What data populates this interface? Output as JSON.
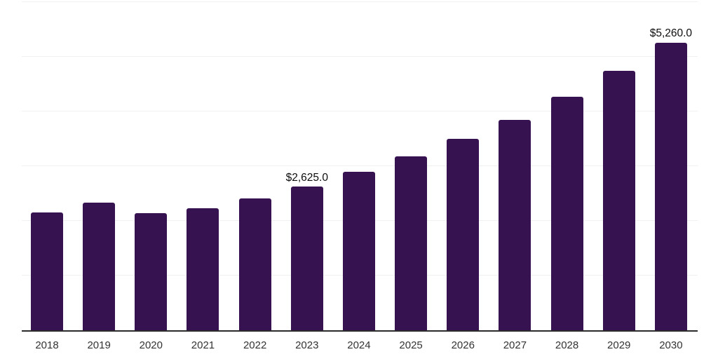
{
  "chart_data": {
    "type": "bar",
    "title": "",
    "xlabel": "",
    "ylabel": "",
    "categories": [
      "2018",
      "2019",
      "2020",
      "2021",
      "2022",
      "2023",
      "2024",
      "2025",
      "2026",
      "2027",
      "2028",
      "2029",
      "2030"
    ],
    "values": [
      2150,
      2330,
      2140,
      2225,
      2405,
      2625,
      2900,
      3180,
      3495,
      3850,
      4265,
      4740,
      5260
    ],
    "data_labels": [
      null,
      null,
      null,
      null,
      null,
      "$2,625.0",
      null,
      null,
      null,
      null,
      null,
      null,
      "$5,260.0"
    ],
    "ylim": [
      0,
      6000
    ],
    "gridline_step": 1000,
    "grid": "horizontal-only",
    "y_tick_labels_visible": false,
    "legend": "none",
    "colors": {
      "bar": "#361250",
      "axis_line": "#2b2b2b",
      "gridline": "#f0f0f2",
      "x_tick_label": "#333333",
      "data_label": "#0d0d0d",
      "background": "#ffffff"
    }
  }
}
